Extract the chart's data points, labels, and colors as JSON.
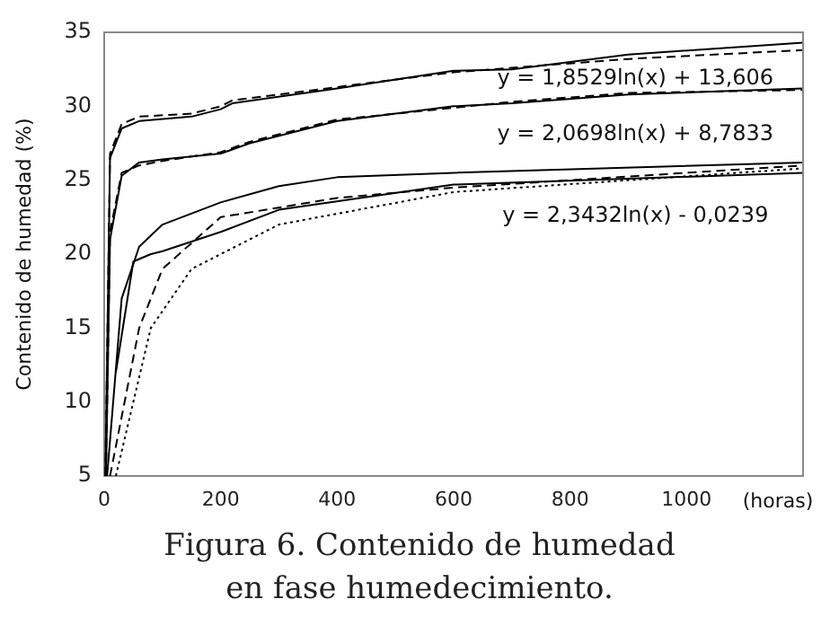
{
  "chart_data": {
    "type": "line",
    "title": "Figura 6. Contenido de humedad\nen fase humedecimiento.",
    "xlabel": "(horas)",
    "ylabel": "Contenido de humedad (%)",
    "xlim": [
      0,
      1200
    ],
    "xticks": [
      0,
      200,
      400,
      600,
      800,
      1000
    ],
    "ylim": [
      5,
      35
    ],
    "yticks": [
      5,
      10,
      15,
      20,
      25,
      30,
      35
    ],
    "grid": false,
    "legend": false,
    "marker": "none",
    "series": [
      {
        "color": "#000000",
        "line_style": "solid",
        "x": [
          2,
          10,
          30,
          60,
          150,
          200,
          220,
          400,
          600,
          700,
          900,
          1200
        ],
        "values": [
          5,
          26.5,
          28.5,
          29,
          29.3,
          29.8,
          30.2,
          31.2,
          32.4,
          32.5,
          33.5,
          34.3
        ]
      },
      {
        "color": "#000000",
        "line_style": "dashed",
        "x": [
          2,
          10,
          30,
          60,
          150,
          200,
          220,
          400,
          600,
          700,
          900,
          1200
        ],
        "values": [
          5,
          26.8,
          28.8,
          29.3,
          29.5,
          30,
          30.4,
          31.3,
          32.3,
          32.6,
          33.2,
          33.8
        ]
      },
      {
        "color": "#000000",
        "line_style": "solid",
        "x": [
          3,
          10,
          30,
          60,
          100,
          200,
          250,
          400,
          600,
          700,
          900,
          1200
        ],
        "values": [
          5,
          21,
          25.3,
          26.2,
          26.4,
          26.8,
          27.5,
          29,
          30,
          30.2,
          30.8,
          31.2
        ]
      },
      {
        "color": "#000000",
        "line_style": "dashed",
        "x": [
          3,
          10,
          30,
          60,
          100,
          200,
          250,
          400,
          600,
          700,
          900,
          1200
        ],
        "values": [
          5,
          21.5,
          25.5,
          26,
          26.3,
          26.9,
          27.6,
          29.1,
          29.9,
          30.3,
          30.9,
          31.1
        ]
      },
      {
        "color": "#000000",
        "line_style": "solid",
        "x": [
          5,
          30,
          60,
          100,
          200,
          300,
          400,
          600,
          1200
        ],
        "values": [
          5,
          17,
          20.5,
          22,
          23.5,
          24.6,
          25.2,
          25.5,
          26.2
        ]
      },
      {
        "color": "#000000",
        "line_style": "solid",
        "x": [
          20,
          50,
          80,
          100,
          200,
          300,
          600,
          1200
        ],
        "values": [
          12,
          19.5,
          20,
          20.2,
          21.5,
          23,
          24.7,
          25.5
        ]
      },
      {
        "color": "#000000",
        "line_style": "dashed",
        "x": [
          10,
          60,
          100,
          200,
          400,
          600,
          1200
        ],
        "values": [
          5,
          15,
          19,
          22.5,
          23.8,
          24.5,
          26
        ]
      },
      {
        "color": "#000000",
        "line_style": "dotted",
        "x": [
          20,
          80,
          150,
          300,
          600,
          1200
        ],
        "values": [
          5,
          15,
          19,
          22,
          24.2,
          25.8
        ]
      }
    ],
    "annotations": [
      "y = 1,8529ln(x) + 13,606",
      "y = 2,0698ln(x) + 8,7833",
      "y = 2,3432ln(x) - 0,0239"
    ]
  }
}
